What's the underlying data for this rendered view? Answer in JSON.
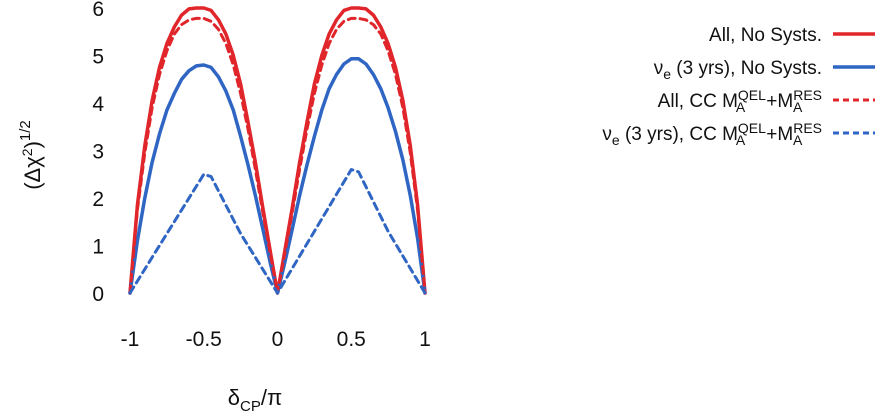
{
  "chart_data": {
    "type": "line",
    "xlabel": "δ_CP/π",
    "ylabel": "(Δχ²)^1/2",
    "xlim": [
      -1,
      1
    ],
    "ylim": [
      0,
      6
    ],
    "xticks": [
      {
        "value": -1,
        "label": "-1"
      },
      {
        "value": -0.5,
        "label": "-0.5"
      },
      {
        "value": 0,
        "label": "0"
      },
      {
        "value": 0.5,
        "label": "0.5"
      },
      {
        "value": 1,
        "label": "1"
      }
    ],
    "yticks": [
      {
        "value": 0,
        "label": "0"
      },
      {
        "value": 1,
        "label": "1"
      },
      {
        "value": 2,
        "label": "2"
      },
      {
        "value": 3,
        "label": "3"
      },
      {
        "value": 4,
        "label": "4"
      },
      {
        "value": 5,
        "label": "5"
      },
      {
        "value": 6,
        "label": "6"
      }
    ],
    "grid": false,
    "legend_position": "right",
    "series": [
      {
        "name": "All, No Systs.",
        "color": "#e0262b",
        "dash": "solid",
        "points": [
          [
            -1,
            0
          ],
          [
            -0.95,
            1.85
          ],
          [
            -0.9,
            3.1
          ],
          [
            -0.85,
            4.05
          ],
          [
            -0.8,
            4.75
          ],
          [
            -0.75,
            5.25
          ],
          [
            -0.7,
            5.6
          ],
          [
            -0.65,
            5.85
          ],
          [
            -0.6,
            5.98
          ],
          [
            -0.55,
            6.0
          ],
          [
            -0.5,
            6.0
          ],
          [
            -0.45,
            5.95
          ],
          [
            -0.4,
            5.75
          ],
          [
            -0.35,
            5.45
          ],
          [
            -0.3,
            5.0
          ],
          [
            -0.25,
            4.4
          ],
          [
            -0.2,
            3.6
          ],
          [
            -0.15,
            2.75
          ],
          [
            -0.1,
            1.8
          ],
          [
            -0.05,
            0.9
          ],
          [
            0,
            0
          ],
          [
            0.05,
            0.9
          ],
          [
            0.1,
            1.8
          ],
          [
            0.15,
            2.75
          ],
          [
            0.2,
            3.6
          ],
          [
            0.25,
            4.4
          ],
          [
            0.3,
            5.0
          ],
          [
            0.35,
            5.45
          ],
          [
            0.4,
            5.75
          ],
          [
            0.45,
            5.95
          ],
          [
            0.5,
            6.0
          ],
          [
            0.55,
            6.0
          ],
          [
            0.6,
            5.98
          ],
          [
            0.65,
            5.85
          ],
          [
            0.7,
            5.6
          ],
          [
            0.75,
            5.25
          ],
          [
            0.8,
            4.75
          ],
          [
            0.85,
            4.05
          ],
          [
            0.9,
            3.1
          ],
          [
            0.95,
            1.85
          ],
          [
            1,
            0
          ]
        ]
      },
      {
        "name": "ν_e (3 yrs), No Systs.",
        "color": "#2f66c4",
        "dash": "solid",
        "points": [
          [
            -1,
            0
          ],
          [
            -0.95,
            1.1
          ],
          [
            -0.9,
            2.0
          ],
          [
            -0.85,
            2.75
          ],
          [
            -0.8,
            3.35
          ],
          [
            -0.75,
            3.85
          ],
          [
            -0.7,
            4.2
          ],
          [
            -0.65,
            4.5
          ],
          [
            -0.6,
            4.68
          ],
          [
            -0.55,
            4.78
          ],
          [
            -0.5,
            4.8
          ],
          [
            -0.45,
            4.75
          ],
          [
            -0.4,
            4.55
          ],
          [
            -0.35,
            4.25
          ],
          [
            -0.3,
            3.85
          ],
          [
            -0.25,
            3.3
          ],
          [
            -0.2,
            2.7
          ],
          [
            -0.15,
            2.05
          ],
          [
            -0.1,
            1.35
          ],
          [
            -0.05,
            0.65
          ],
          [
            0,
            0
          ],
          [
            0.05,
            0.65
          ],
          [
            0.1,
            1.35
          ],
          [
            0.15,
            2.05
          ],
          [
            0.2,
            2.7
          ],
          [
            0.25,
            3.3
          ],
          [
            0.3,
            3.85
          ],
          [
            0.35,
            4.3
          ],
          [
            0.4,
            4.6
          ],
          [
            0.45,
            4.82
          ],
          [
            0.5,
            4.93
          ],
          [
            0.55,
            4.93
          ],
          [
            0.6,
            4.82
          ],
          [
            0.65,
            4.6
          ],
          [
            0.7,
            4.3
          ],
          [
            0.75,
            3.9
          ],
          [
            0.8,
            3.4
          ],
          [
            0.85,
            2.8
          ],
          [
            0.9,
            2.05
          ],
          [
            0.95,
            1.15
          ],
          [
            1,
            0
          ]
        ]
      },
      {
        "name": "All, CC M_A^QEL+M_A^RES",
        "color": "#e0262b",
        "dash": "dashed",
        "points": [
          [
            -1,
            0
          ],
          [
            -0.95,
            1.75
          ],
          [
            -0.9,
            2.95
          ],
          [
            -0.85,
            3.9
          ],
          [
            -0.8,
            4.6
          ],
          [
            -0.75,
            5.1
          ],
          [
            -0.7,
            5.45
          ],
          [
            -0.65,
            5.65
          ],
          [
            -0.6,
            5.75
          ],
          [
            -0.55,
            5.78
          ],
          [
            -0.5,
            5.78
          ],
          [
            -0.45,
            5.72
          ],
          [
            -0.4,
            5.55
          ],
          [
            -0.35,
            5.25
          ],
          [
            -0.3,
            4.8
          ],
          [
            -0.25,
            4.2
          ],
          [
            -0.2,
            3.45
          ],
          [
            -0.15,
            2.6
          ],
          [
            -0.1,
            1.7
          ],
          [
            -0.05,
            0.85
          ],
          [
            0,
            0
          ],
          [
            0.05,
            0.85
          ],
          [
            0.1,
            1.7
          ],
          [
            0.15,
            2.6
          ],
          [
            0.2,
            3.45
          ],
          [
            0.25,
            4.2
          ],
          [
            0.3,
            4.8
          ],
          [
            0.35,
            5.25
          ],
          [
            0.4,
            5.55
          ],
          [
            0.45,
            5.72
          ],
          [
            0.5,
            5.78
          ],
          [
            0.55,
            5.78
          ],
          [
            0.6,
            5.75
          ],
          [
            0.65,
            5.65
          ],
          [
            0.7,
            5.45
          ],
          [
            0.75,
            5.1
          ],
          [
            0.8,
            4.6
          ],
          [
            0.85,
            3.9
          ],
          [
            0.9,
            2.95
          ],
          [
            0.95,
            1.75
          ],
          [
            1,
            0
          ]
        ]
      },
      {
        "name": "ν_e (3 yrs), CC M_A^QEL+M_A^RES",
        "color": "#2f66c4",
        "dash": "dashed",
        "points": [
          [
            -1,
            0
          ],
          [
            -0.75,
            1.25
          ],
          [
            -0.5,
            2.5
          ],
          [
            -0.45,
            2.45
          ],
          [
            -0.25,
            1.25
          ],
          [
            0,
            0
          ],
          [
            0.25,
            1.3
          ],
          [
            0.5,
            2.6
          ],
          [
            0.55,
            2.55
          ],
          [
            0.75,
            1.3
          ],
          [
            1,
            0
          ]
        ]
      }
    ]
  }
}
